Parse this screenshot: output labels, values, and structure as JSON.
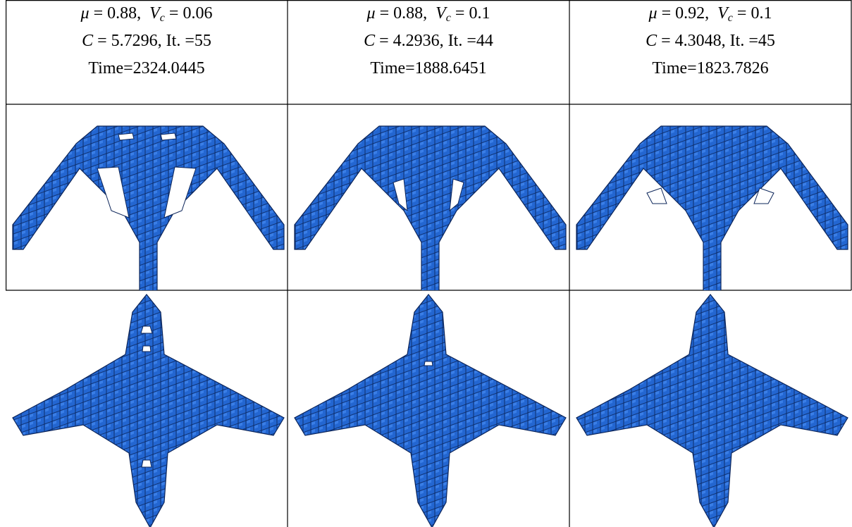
{
  "table": {
    "columns": [
      {
        "mu_symbol": "μ",
        "mu_value": " = 0.88,",
        "vc_symbol": "V",
        "vc_sub": "c",
        "vc_value": " = 0.06",
        "c_symbol": "C",
        "c_value": " = 5.7296, It. =55",
        "time": "Time=2324.0445"
      },
      {
        "mu_symbol": "μ",
        "mu_value": " = 0.88,",
        "vc_symbol": "V",
        "vc_sub": "c",
        "vc_value": " = 0.1",
        "c_symbol": "C",
        "c_value": " = 4.2936, It. =44",
        "time": "Time=1888.6451"
      },
      {
        "mu_symbol": "μ",
        "mu_value": " = 0.92,",
        "vc_symbol": "V",
        "vc_sub": "c",
        "vc_value": " = 0.1",
        "c_symbol": "C",
        "c_value": " = 4.3048, It. =45",
        "time": "Time=1823.7826"
      }
    ]
  }
}
